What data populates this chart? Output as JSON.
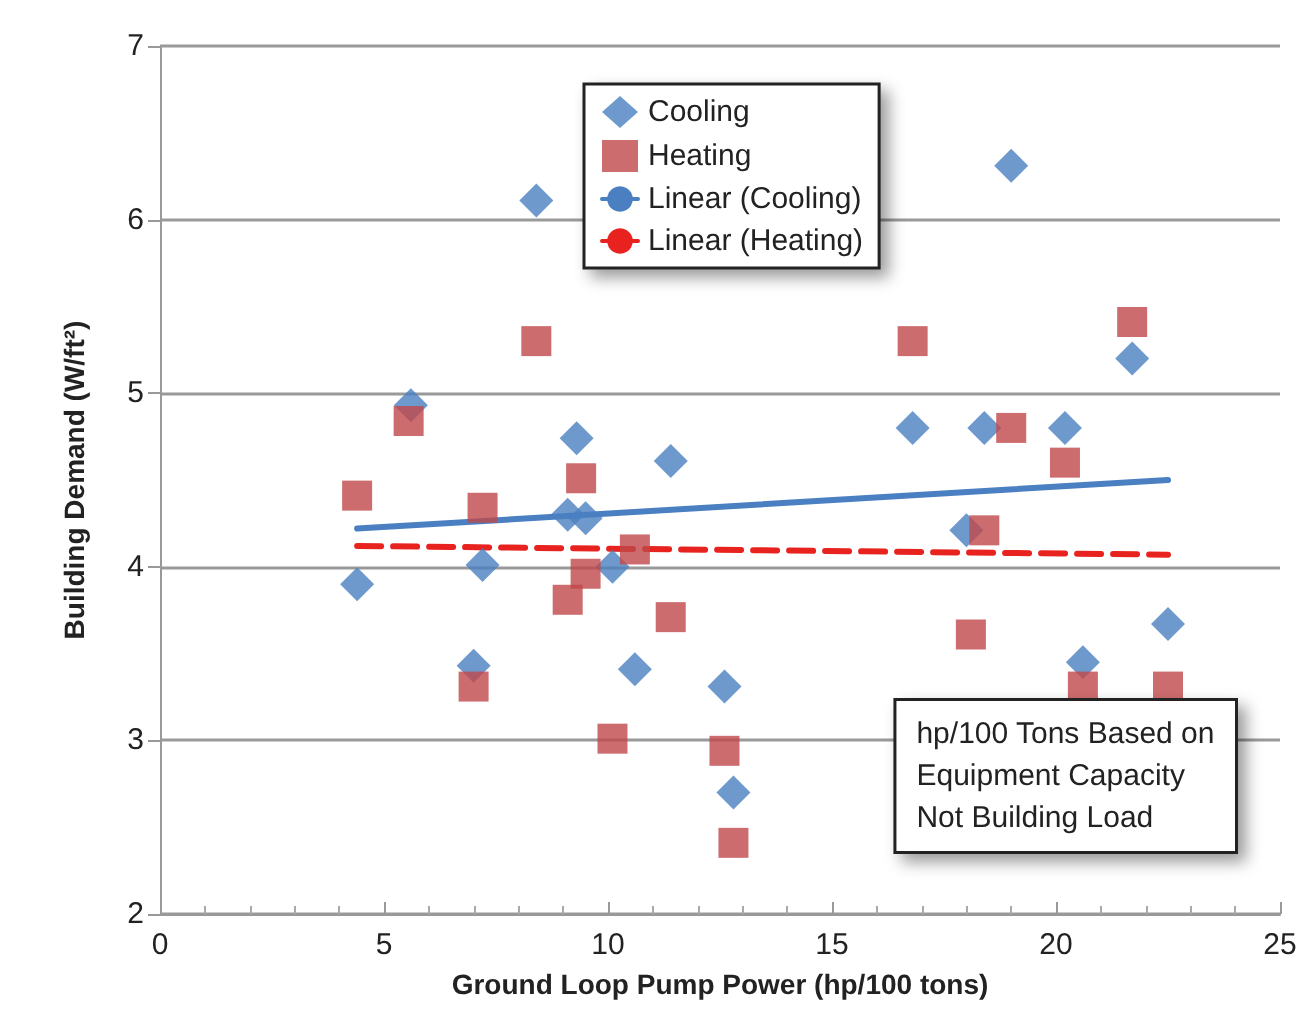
{
  "chart_data": {
    "type": "scatter",
    "xlabel": "Ground Loop Pump Power (hp/100 tons)",
    "ylabel": "Building Demand (W/ft²)",
    "xlim": [
      0,
      25
    ],
    "xticks": [
      0,
      5,
      10,
      15,
      20,
      25
    ],
    "ylim": [
      2,
      7
    ],
    "yticks": [
      2,
      3,
      4,
      5,
      6,
      7
    ],
    "grid": "y",
    "legend": "top",
    "annotations": [
      "hp/100 Tons Based on\nEquipment Capacity\nNot Building Load"
    ],
    "series": [
      {
        "name": "Cooling",
        "marker": "diamond",
        "color": "#4a7fc1",
        "x": [
          4.4,
          5.6,
          8.4,
          7.2,
          7.0,
          9.3,
          9.1,
          9.5,
          10.1,
          11.4,
          10.6,
          12.6,
          12.8,
          19.0,
          16.8,
          18.4,
          20.2,
          21.7,
          18.0,
          22.5,
          20.6
        ],
        "values": [
          3.9,
          4.93,
          6.11,
          4.01,
          3.43,
          4.74,
          4.3,
          4.28,
          4.0,
          4.61,
          3.41,
          3.31,
          2.7,
          6.31,
          4.8,
          4.8,
          4.8,
          5.2,
          4.21,
          3.67,
          3.45
        ]
      },
      {
        "name": "Heating",
        "marker": "square",
        "color": "#c0474a",
        "x": [
          4.4,
          5.55,
          8.4,
          7.2,
          7.0,
          9.4,
          9.5,
          9.1,
          10.6,
          10.1,
          11.4,
          12.6,
          12.8,
          16.8,
          21.7,
          19.0,
          20.2,
          18.4,
          18.1,
          20.6,
          22.5
        ],
        "values": [
          4.41,
          4.84,
          5.3,
          4.34,
          3.31,
          4.51,
          3.96,
          3.81,
          4.1,
          3.01,
          3.71,
          2.94,
          2.41,
          5.3,
          5.41,
          4.8,
          4.6,
          4.21,
          3.61,
          3.31,
          3.31
        ]
      },
      {
        "name": "Linear (Cooling)",
        "type": "line",
        "marker": "none",
        "line_style": "solid",
        "color": "#4a7fc1",
        "x": [
          4.4,
          22.5
        ],
        "values": [
          4.22,
          4.5
        ]
      },
      {
        "name": "Linear (Heating)",
        "type": "line",
        "marker": "none",
        "line_style": "dashed",
        "color": "#e8231f",
        "x": [
          4.4,
          22.5
        ],
        "values": [
          4.12,
          4.07
        ]
      }
    ]
  }
}
